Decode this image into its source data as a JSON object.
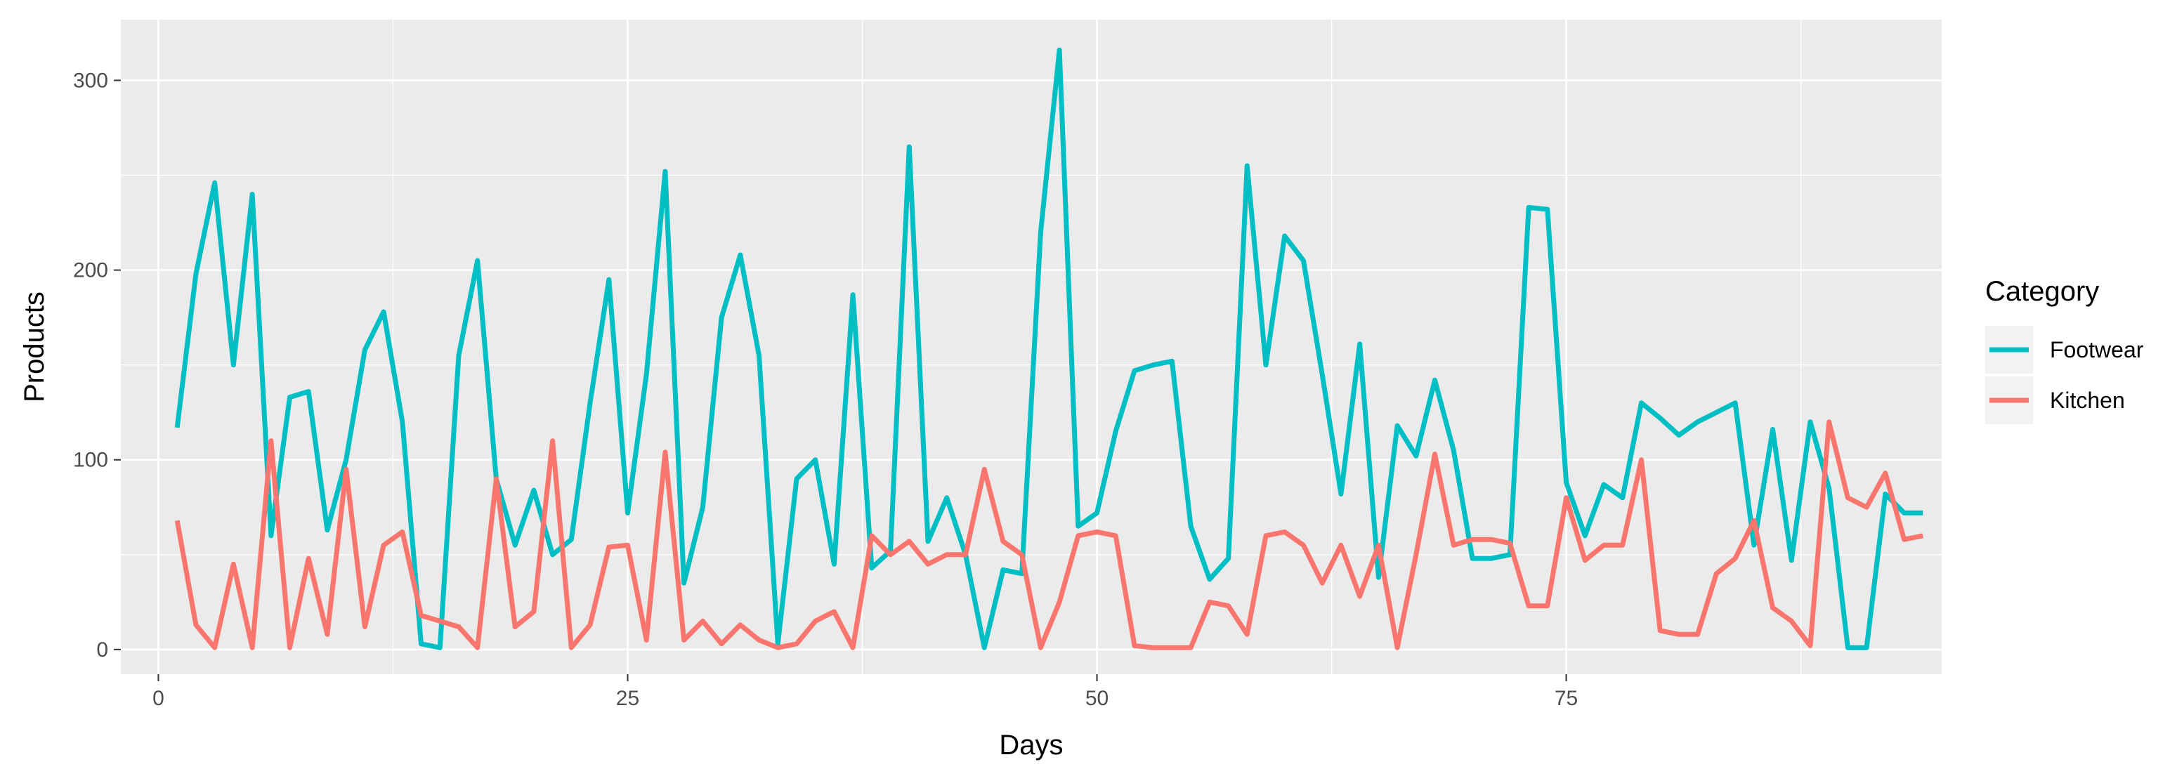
{
  "chart_data": {
    "type": "line",
    "xlabel": "Days",
    "ylabel": "Products",
    "xlim": [
      -2,
      95
    ],
    "ylim": [
      -13,
      332
    ],
    "x_ticks": [
      0,
      25,
      50,
      75
    ],
    "x_tick_labels": [
      "0",
      "25",
      "50",
      "75"
    ],
    "y_ticks": [
      0,
      100,
      200,
      300
    ],
    "y_tick_labels": [
      "0",
      "100",
      "200",
      "300"
    ],
    "grid": true,
    "background": "#ebebeb",
    "legend": {
      "title": "Category",
      "position": "right"
    },
    "x": [
      1,
      2,
      3,
      4,
      5,
      6,
      7,
      8,
      9,
      10,
      11,
      12,
      13,
      14,
      15,
      16,
      17,
      18,
      19,
      20,
      21,
      22,
      23,
      24,
      25,
      26,
      27,
      28,
      29,
      30,
      31,
      32,
      33,
      34,
      35,
      36,
      37,
      38,
      39,
      40,
      41,
      42,
      43,
      44,
      45,
      46,
      47,
      48,
      49,
      50,
      51,
      52,
      53,
      54,
      55,
      56,
      57,
      58,
      59,
      60,
      61,
      62,
      63,
      64,
      65,
      66,
      67,
      68,
      69,
      70,
      71,
      72,
      73,
      74,
      75,
      76,
      77,
      78,
      79,
      80,
      81,
      82,
      83,
      84,
      85,
      86,
      87,
      88,
      89,
      90,
      91,
      92,
      93,
      94
    ],
    "series": [
      {
        "name": "Footwear",
        "color": "#00BFC4",
        "values": [
          117,
          198,
          246,
          150,
          240,
          60,
          133,
          136,
          63,
          100,
          158,
          178,
          120,
          3,
          1,
          155,
          205,
          90,
          55,
          84,
          50,
          58,
          130,
          195,
          72,
          145,
          252,
          35,
          75,
          175,
          208,
          155,
          3,
          90,
          100,
          45,
          187,
          43,
          52,
          265,
          57,
          80,
          50,
          1,
          42,
          40,
          220,
          316,
          65,
          72,
          115,
          147,
          150,
          152,
          65,
          37,
          48,
          255,
          150,
          218,
          205,
          145,
          82,
          161,
          38,
          118,
          102,
          142,
          105,
          48,
          48,
          50,
          233,
          232,
          88,
          60,
          87,
          80,
          130,
          122,
          113,
          120,
          125,
          130,
          55,
          116,
          47,
          120,
          85,
          1,
          1,
          82,
          72,
          72
        ]
      },
      {
        "name": "Kitchen",
        "color": "#F8766D",
        "values": [
          68,
          13,
          1,
          45,
          1,
          110,
          1,
          48,
          8,
          95,
          12,
          55,
          62,
          18,
          15,
          12,
          1,
          90,
          12,
          20,
          110,
          1,
          13,
          54,
          55,
          5,
          104,
          5,
          15,
          3,
          13,
          5,
          1,
          3,
          15,
          20,
          1,
          60,
          50,
          57,
          45,
          50,
          50,
          95,
          57,
          50,
          1,
          25,
          60,
          62,
          60,
          2,
          1,
          1,
          1,
          25,
          23,
          8,
          60,
          62,
          55,
          35,
          55,
          28,
          55,
          1,
          50,
          103,
          55,
          58,
          58,
          56,
          23,
          23,
          80,
          47,
          55,
          55,
          100,
          10,
          8,
          8,
          40,
          48,
          68,
          22,
          15,
          2,
          120,
          80,
          75,
          93,
          58,
          60
        ]
      }
    ]
  }
}
